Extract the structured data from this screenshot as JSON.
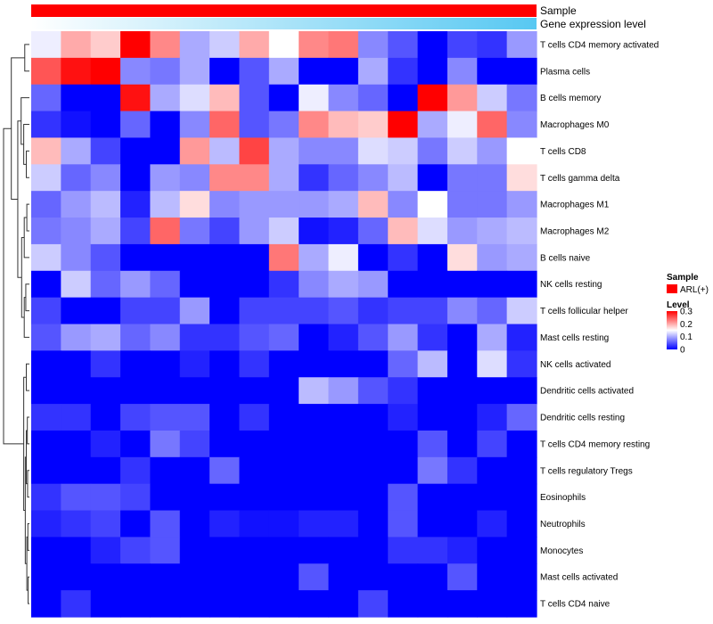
{
  "chart_data": {
    "type": "heatmap",
    "title": "",
    "annotation_tracks": [
      {
        "label": "Sample",
        "color": "#ff0000"
      },
      {
        "label": "Gene expression level",
        "gradient": [
          "#ffffff",
          "#57c8f2"
        ]
      }
    ],
    "rows": [
      "T cells CD4 memory activated",
      "Plasma cells",
      "B cells memory",
      "Macrophages M0",
      "T cells CD8",
      "T cells gamma delta",
      "Macrophages M1",
      "Macrophages M2",
      "B cells naive",
      "NK cells resting",
      "T cells follicular helper",
      "Mast cells resting",
      "NK cells activated",
      "Dendritic cells activated",
      "Dendritic cells resting",
      "T cells CD4 memory resting",
      "T cells regulatory  Tregs",
      "Eosinophils",
      "Neutrophils",
      "Monocytes",
      "Mast cells activated",
      "T cells CD4 naive"
    ],
    "n_columns": 17,
    "values": [
      [
        0.14,
        0.2,
        0.18,
        0.3,
        0.22,
        0.1,
        0.12,
        0.2,
        0.15,
        0.22,
        0.23,
        0.08,
        0.05,
        0.0,
        0.04,
        0.03,
        0.09
      ],
      [
        0.25,
        0.29,
        0.3,
        0.08,
        0.07,
        0.1,
        0.0,
        0.05,
        0.1,
        0.0,
        0.0,
        0.1,
        0.03,
        0.0,
        0.08,
        0.0,
        0.0
      ],
      [
        0.06,
        0.0,
        0.0,
        0.29,
        0.1,
        0.13,
        0.19,
        0.05,
        0.0,
        0.14,
        0.08,
        0.06,
        0.0,
        0.3,
        0.21,
        0.12,
        0.07
      ],
      [
        0.03,
        0.01,
        0.0,
        0.06,
        0.0,
        0.08,
        0.24,
        0.05,
        0.07,
        0.22,
        0.19,
        0.18,
        0.3,
        0.1,
        0.14,
        0.24,
        0.08
      ],
      [
        0.19,
        0.1,
        0.04,
        0.0,
        0.0,
        0.21,
        0.11,
        0.26,
        0.1,
        0.08,
        0.08,
        0.13,
        0.12,
        0.07,
        0.12,
        0.09,
        0.15
      ],
      [
        0.12,
        0.06,
        0.08,
        0.0,
        0.09,
        0.08,
        0.22,
        0.22,
        0.1,
        0.03,
        0.06,
        0.08,
        0.11,
        0.0,
        0.07,
        0.07,
        0.17
      ],
      [
        0.06,
        0.09,
        0.11,
        0.02,
        0.11,
        0.17,
        0.08,
        0.09,
        0.09,
        0.09,
        0.1,
        0.19,
        0.08,
        0.15,
        0.07,
        0.07,
        0.09
      ],
      [
        0.07,
        0.08,
        0.1,
        0.04,
        0.24,
        0.07,
        0.04,
        0.09,
        0.12,
        0.01,
        0.02,
        0.06,
        0.19,
        0.13,
        0.09,
        0.1,
        0.11
      ],
      [
        0.12,
        0.08,
        0.05,
        0.0,
        0.0,
        0.0,
        0.0,
        0.0,
        0.23,
        0.1,
        0.14,
        0.0,
        0.03,
        0.0,
        0.17,
        0.09,
        0.1
      ],
      [
        0.0,
        0.12,
        0.06,
        0.09,
        0.06,
        0.0,
        0.0,
        0.0,
        0.03,
        0.08,
        0.1,
        0.09,
        0.0,
        0.0,
        0.0,
        0.0,
        0.0
      ],
      [
        0.04,
        0.0,
        0.0,
        0.04,
        0.04,
        0.09,
        0.0,
        0.04,
        0.04,
        0.04,
        0.05,
        0.03,
        0.04,
        0.04,
        0.08,
        0.06,
        0.12
      ],
      [
        0.05,
        0.09,
        0.1,
        0.06,
        0.08,
        0.03,
        0.03,
        0.05,
        0.06,
        0.0,
        0.02,
        0.05,
        0.09,
        0.03,
        0.0,
        0.1,
        0.02
      ],
      [
        0.0,
        0.0,
        0.03,
        0.0,
        0.0,
        0.02,
        0.0,
        0.03,
        0.0,
        0.0,
        0.0,
        0.0,
        0.06,
        0.11,
        0.0,
        0.13,
        0.03
      ],
      [
        0.0,
        0.0,
        0.0,
        0.0,
        0.0,
        0.0,
        0.0,
        0.0,
        0.0,
        0.11,
        0.09,
        0.05,
        0.03,
        0.0,
        0.0,
        0.0,
        0.0
      ],
      [
        0.03,
        0.03,
        0.0,
        0.04,
        0.05,
        0.05,
        0.0,
        0.03,
        0.0,
        0.0,
        0.0,
        0.0,
        0.02,
        0.0,
        0.0,
        0.02,
        0.06
      ],
      [
        0.0,
        0.0,
        0.02,
        0.0,
        0.07,
        0.04,
        0.0,
        0.0,
        0.0,
        0.0,
        0.0,
        0.0,
        0.0,
        0.05,
        0.0,
        0.04,
        0.0
      ],
      [
        0.0,
        0.0,
        0.0,
        0.03,
        0.0,
        0.0,
        0.06,
        0.0,
        0.0,
        0.0,
        0.0,
        0.0,
        0.0,
        0.07,
        0.03,
        0.0,
        0.0
      ],
      [
        0.03,
        0.05,
        0.05,
        0.04,
        0.0,
        0.0,
        0.0,
        0.0,
        0.0,
        0.0,
        0.0,
        0.0,
        0.05,
        0.0,
        0.0,
        0.0,
        0.0
      ],
      [
        0.02,
        0.03,
        0.04,
        0.0,
        0.05,
        0.0,
        0.02,
        0.01,
        0.01,
        0.02,
        0.02,
        0.0,
        0.05,
        0.0,
        0.0,
        0.02,
        0.0
      ],
      [
        0.0,
        0.0,
        0.02,
        0.04,
        0.05,
        0.0,
        0.0,
        0.0,
        0.0,
        0.0,
        0.0,
        0.0,
        0.03,
        0.03,
        0.02,
        0.0,
        0.0
      ],
      [
        0.0,
        0.0,
        0.0,
        0.0,
        0.0,
        0.0,
        0.0,
        0.0,
        0.0,
        0.05,
        0.0,
        0.0,
        0.0,
        0.0,
        0.05,
        0.0,
        0.0
      ],
      [
        0.0,
        0.03,
        0.0,
        0.0,
        0.0,
        0.0,
        0.0,
        0.0,
        0.0,
        0.0,
        0.0,
        0.04,
        0.0,
        0.0,
        0.0,
        0.0,
        0.0
      ]
    ],
    "color_scale": {
      "min": 0,
      "mid": 0.15,
      "max": 0.3,
      "low_color": "#0000ff",
      "mid_color": "#ffffff",
      "high_color": "#ff0000"
    },
    "legend": {
      "sample_title": "Sample",
      "sample_entry": "ARL(+)",
      "sample_color": "#ff0000",
      "level_title": "Level",
      "level_ticks": [
        "0.3",
        "0.2",
        "0.1",
        "0"
      ],
      "level_tick_values": [
        0.3,
        0.2,
        0.1,
        0
      ],
      "placement": "right"
    },
    "dendrogram": "rows"
  }
}
